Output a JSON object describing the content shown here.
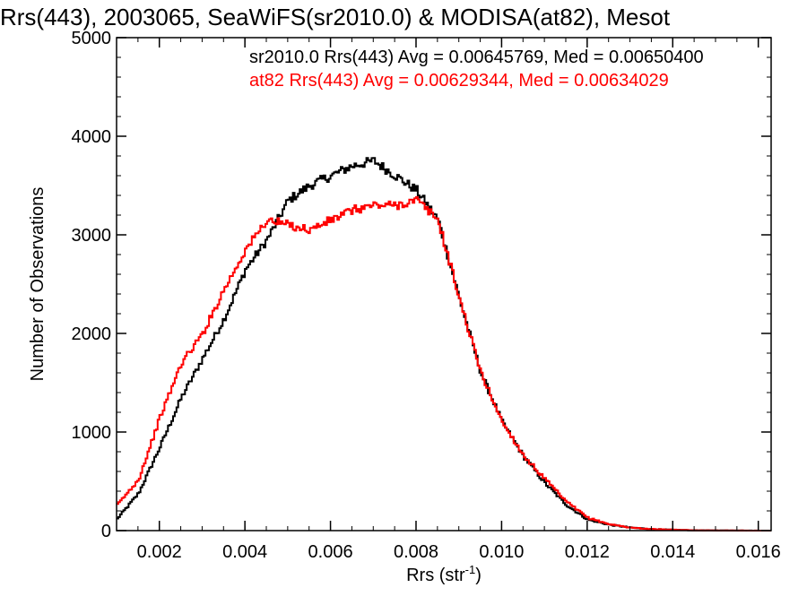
{
  "chart_data": {
    "type": "line",
    "title": "Rrs(443), 2003065, SeaWiFS(sr2010.0) & MODISA(at82), Mesot",
    "xlabel": "Rrs (str",
    "xlabel_sup": "-1",
    "xlabel_close": ")",
    "ylabel": "Number of Observations",
    "xlim": [
      0.001,
      0.0163
    ],
    "ylim": [
      0,
      5000
    ],
    "xticks": [
      {
        "value": 0.002,
        "label": "0.002"
      },
      {
        "value": 0.004,
        "label": "0.004"
      },
      {
        "value": 0.006,
        "label": "0.006"
      },
      {
        "value": 0.008,
        "label": "0.008"
      },
      {
        "value": 0.01,
        "label": "0.010"
      },
      {
        "value": 0.012,
        "label": "0.012"
      },
      {
        "value": 0.014,
        "label": "0.014"
      },
      {
        "value": 0.016,
        "label": "0.016"
      }
    ],
    "yticks": [
      {
        "value": 0,
        "label": "0"
      },
      {
        "value": 1000,
        "label": "1000"
      },
      {
        "value": 2000,
        "label": "2000"
      },
      {
        "value": 3000,
        "label": "3000"
      },
      {
        "value": 4000,
        "label": "4000"
      },
      {
        "value": 5000,
        "label": "5000"
      }
    ],
    "annotations": [
      {
        "text": "sr2010.0 Rrs(443) Avg = 0.00645769, Med = 0.00650400",
        "color": "#000000"
      },
      {
        "text": "at82 Rrs(443) Avg = 0.00629344, Med = 0.00634029",
        "color": "#ff0000"
      }
    ],
    "step": "histogram",
    "series": [
      {
        "color": "#000000",
        "x": [
          0.001,
          0.0015,
          0.002,
          0.0025,
          0.003,
          0.0035,
          0.004,
          0.0045,
          0.005,
          0.0055,
          0.006,
          0.0065,
          0.007,
          0.0075,
          0.008,
          0.0085,
          0.009,
          0.0095,
          0.01,
          0.0105,
          0.011,
          0.0115,
          0.012,
          0.0125,
          0.013,
          0.0135,
          0.014,
          0.0145,
          0.015,
          0.0155,
          0.016,
          0.0163
        ],
        "values": [
          120,
          380,
          850,
          1350,
          1750,
          2150,
          2650,
          2950,
          3350,
          3500,
          3600,
          3700,
          3750,
          3600,
          3450,
          3150,
          2350,
          1600,
          1100,
          750,
          480,
          260,
          110,
          60,
          30,
          15,
          8,
          3,
          2,
          1,
          0,
          0
        ]
      },
      {
        "color": "#ff0000",
        "x": [
          0.001,
          0.0015,
          0.002,
          0.0025,
          0.003,
          0.0035,
          0.004,
          0.0045,
          0.005,
          0.0055,
          0.006,
          0.0065,
          0.007,
          0.0075,
          0.008,
          0.0085,
          0.009,
          0.0095,
          0.01,
          0.0105,
          0.011,
          0.0115,
          0.012,
          0.0125,
          0.013,
          0.0135,
          0.014,
          0.0145,
          0.015,
          0.0155,
          0.016,
          0.0163
        ],
        "values": [
          260,
          520,
          1150,
          1700,
          2000,
          2450,
          2850,
          3150,
          3100,
          3050,
          3150,
          3250,
          3300,
          3300,
          3350,
          3150,
          2350,
          1600,
          1100,
          760,
          520,
          290,
          130,
          65,
          30,
          15,
          8,
          3,
          2,
          1,
          0,
          0
        ]
      }
    ]
  }
}
